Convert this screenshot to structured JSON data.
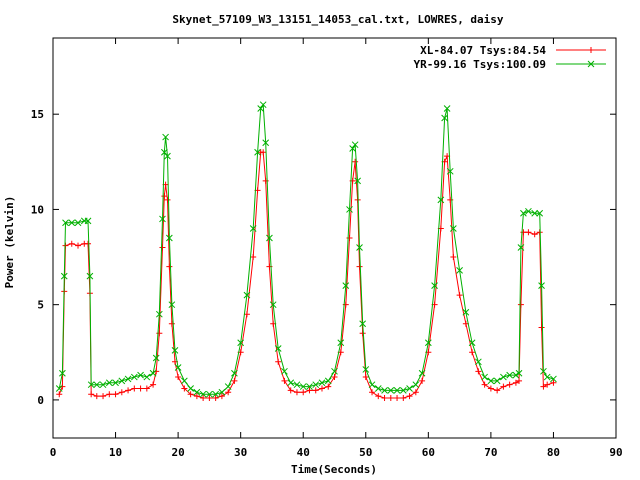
{
  "chart_data": {
    "type": "scatter",
    "title": "Skynet_57109_W3_13151_14053_cal.txt, LOWRES, daisy",
    "xlabel": "Time(Seconds)",
    "ylabel": "Power (kelvin)",
    "xlim": [
      0,
      90
    ],
    "ylim": [
      -2,
      19
    ],
    "xticks": [
      0,
      10,
      20,
      30,
      40,
      50,
      60,
      70,
      80,
      90
    ],
    "yticks": [
      0,
      5,
      10,
      15
    ],
    "grid": false,
    "legend_position": "top-right",
    "series": [
      {
        "name": "XL-84.07 Tsys:84.54",
        "color": "#ff0000",
        "marker": "plus",
        "points": [
          [
            1.0,
            0.3
          ],
          [
            1.5,
            0.7
          ],
          [
            1.8,
            5.7
          ],
          [
            2.0,
            8.1
          ],
          [
            3.0,
            8.2
          ],
          [
            4.0,
            8.1
          ],
          [
            5.0,
            8.2
          ],
          [
            5.6,
            8.2
          ],
          [
            5.9,
            5.6
          ],
          [
            6.1,
            0.3
          ],
          [
            7.0,
            0.2
          ],
          [
            8.0,
            0.2
          ],
          [
            9.0,
            0.3
          ],
          [
            10.0,
            0.3
          ],
          [
            11.0,
            0.4
          ],
          [
            12.0,
            0.5
          ],
          [
            13.0,
            0.6
          ],
          [
            14.0,
            0.6
          ],
          [
            15.0,
            0.6
          ],
          [
            16.0,
            0.8
          ],
          [
            16.5,
            1.5
          ],
          [
            17.0,
            3.5
          ],
          [
            17.5,
            8.0
          ],
          [
            17.8,
            10.7
          ],
          [
            18.0,
            11.3
          ],
          [
            18.3,
            10.5
          ],
          [
            18.6,
            7.0
          ],
          [
            19.0,
            4.0
          ],
          [
            19.5,
            2.0
          ],
          [
            20.0,
            1.2
          ],
          [
            21.0,
            0.6
          ],
          [
            22.0,
            0.3
          ],
          [
            23.0,
            0.2
          ],
          [
            24.0,
            0.1
          ],
          [
            25.0,
            0.1
          ],
          [
            26.0,
            0.1
          ],
          [
            27.0,
            0.2
          ],
          [
            28.0,
            0.4
          ],
          [
            29.0,
            1.0
          ],
          [
            30.0,
            2.5
          ],
          [
            31.0,
            4.5
          ],
          [
            32.0,
            7.5
          ],
          [
            32.7,
            11.0
          ],
          [
            33.2,
            13.0
          ],
          [
            33.6,
            13.0
          ],
          [
            34.0,
            11.5
          ],
          [
            34.6,
            7.0
          ],
          [
            35.2,
            4.0
          ],
          [
            36.0,
            2.0
          ],
          [
            37.0,
            1.0
          ],
          [
            38.0,
            0.5
          ],
          [
            39.0,
            0.4
          ],
          [
            40.0,
            0.4
          ],
          [
            41.0,
            0.5
          ],
          [
            42.0,
            0.5
          ],
          [
            43.0,
            0.6
          ],
          [
            44.0,
            0.7
          ],
          [
            45.0,
            1.2
          ],
          [
            46.0,
            2.5
          ],
          [
            46.8,
            5.0
          ],
          [
            47.4,
            8.5
          ],
          [
            47.9,
            11.5
          ],
          [
            48.3,
            12.5
          ],
          [
            48.7,
            10.5
          ],
          [
            49.0,
            7.0
          ],
          [
            49.5,
            3.5
          ],
          [
            50.0,
            1.2
          ],
          [
            51.0,
            0.4
          ],
          [
            52.0,
            0.2
          ],
          [
            53.0,
            0.1
          ],
          [
            54.0,
            0.1
          ],
          [
            55.0,
            0.1
          ],
          [
            56.0,
            0.1
          ],
          [
            57.0,
            0.2
          ],
          [
            58.0,
            0.4
          ],
          [
            59.0,
            1.0
          ],
          [
            60.0,
            2.5
          ],
          [
            61.0,
            5.0
          ],
          [
            62.0,
            9.0
          ],
          [
            62.6,
            12.5
          ],
          [
            63.0,
            12.8
          ],
          [
            63.5,
            10.5
          ],
          [
            64.0,
            7.5
          ],
          [
            65.0,
            5.5
          ],
          [
            66.0,
            4.0
          ],
          [
            67.0,
            2.5
          ],
          [
            68.0,
            1.5
          ],
          [
            69.0,
            0.8
          ],
          [
            70.0,
            0.6
          ],
          [
            71.0,
            0.5
          ],
          [
            72.0,
            0.7
          ],
          [
            73.0,
            0.8
          ],
          [
            74.0,
            0.9
          ],
          [
            74.5,
            1.0
          ],
          [
            74.8,
            5.0
          ],
          [
            75.2,
            8.8
          ],
          [
            76.0,
            8.8
          ],
          [
            77.0,
            8.7
          ],
          [
            77.8,
            8.8
          ],
          [
            78.1,
            3.8
          ],
          [
            78.4,
            0.7
          ],
          [
            79.0,
            0.8
          ],
          [
            80.0,
            0.9
          ]
        ]
      },
      {
        "name": "YR-99.16 Tsys:100.09",
        "color": "#00b000",
        "marker": "cross",
        "points": [
          [
            1.0,
            0.6
          ],
          [
            1.5,
            1.4
          ],
          [
            1.8,
            6.5
          ],
          [
            2.0,
            9.3
          ],
          [
            3.0,
            9.3
          ],
          [
            4.0,
            9.3
          ],
          [
            5.0,
            9.4
          ],
          [
            5.6,
            9.4
          ],
          [
            5.9,
            6.5
          ],
          [
            6.1,
            0.8
          ],
          [
            7.0,
            0.8
          ],
          [
            8.0,
            0.8
          ],
          [
            9.0,
            0.9
          ],
          [
            10.0,
            0.9
          ],
          [
            11.0,
            1.0
          ],
          [
            12.0,
            1.1
          ],
          [
            13.0,
            1.2
          ],
          [
            14.0,
            1.3
          ],
          [
            15.0,
            1.2
          ],
          [
            16.0,
            1.4
          ],
          [
            16.5,
            2.2
          ],
          [
            17.0,
            4.5
          ],
          [
            17.5,
            9.5
          ],
          [
            17.8,
            13.0
          ],
          [
            18.0,
            13.8
          ],
          [
            18.3,
            12.8
          ],
          [
            18.6,
            8.5
          ],
          [
            19.0,
            5.0
          ],
          [
            19.5,
            2.6
          ],
          [
            20.0,
            1.7
          ],
          [
            21.0,
            1.0
          ],
          [
            22.0,
            0.6
          ],
          [
            23.0,
            0.4
          ],
          [
            24.0,
            0.3
          ],
          [
            25.0,
            0.3
          ],
          [
            26.0,
            0.3
          ],
          [
            27.0,
            0.4
          ],
          [
            28.0,
            0.7
          ],
          [
            29.0,
            1.4
          ],
          [
            30.0,
            3.0
          ],
          [
            31.0,
            5.5
          ],
          [
            32.0,
            9.0
          ],
          [
            32.7,
            13.0
          ],
          [
            33.2,
            15.3
          ],
          [
            33.6,
            15.5
          ],
          [
            34.0,
            13.5
          ],
          [
            34.6,
            8.5
          ],
          [
            35.2,
            5.0
          ],
          [
            36.0,
            2.7
          ],
          [
            37.0,
            1.5
          ],
          [
            38.0,
            0.9
          ],
          [
            39.0,
            0.8
          ],
          [
            40.0,
            0.7
          ],
          [
            41.0,
            0.7
          ],
          [
            42.0,
            0.8
          ],
          [
            43.0,
            0.9
          ],
          [
            44.0,
            1.0
          ],
          [
            45.0,
            1.5
          ],
          [
            46.0,
            3.0
          ],
          [
            46.8,
            6.0
          ],
          [
            47.4,
            10.0
          ],
          [
            47.9,
            13.2
          ],
          [
            48.3,
            13.4
          ],
          [
            48.7,
            11.5
          ],
          [
            49.0,
            8.0
          ],
          [
            49.5,
            4.0
          ],
          [
            50.0,
            1.6
          ],
          [
            51.0,
            0.8
          ],
          [
            52.0,
            0.6
          ],
          [
            53.0,
            0.5
          ],
          [
            54.0,
            0.5
          ],
          [
            55.0,
            0.5
          ],
          [
            56.0,
            0.5
          ],
          [
            57.0,
            0.6
          ],
          [
            58.0,
            0.8
          ],
          [
            59.0,
            1.4
          ],
          [
            60.0,
            3.0
          ],
          [
            61.0,
            6.0
          ],
          [
            62.0,
            10.5
          ],
          [
            62.6,
            14.8
          ],
          [
            63.0,
            15.3
          ],
          [
            63.5,
            12.0
          ],
          [
            64.0,
            9.0
          ],
          [
            65.0,
            6.8
          ],
          [
            66.0,
            4.6
          ],
          [
            67.0,
            3.0
          ],
          [
            68.0,
            2.0
          ],
          [
            69.0,
            1.2
          ],
          [
            70.0,
            1.0
          ],
          [
            71.0,
            1.0
          ],
          [
            72.0,
            1.2
          ],
          [
            73.0,
            1.3
          ],
          [
            74.0,
            1.3
          ],
          [
            74.5,
            1.4
          ],
          [
            74.8,
            8.0
          ],
          [
            75.2,
            9.8
          ],
          [
            76.0,
            9.9
          ],
          [
            77.0,
            9.8
          ],
          [
            77.8,
            9.8
          ],
          [
            78.1,
            6.0
          ],
          [
            78.4,
            1.5
          ],
          [
            79.0,
            1.2
          ],
          [
            80.0,
            1.1
          ]
        ]
      }
    ]
  }
}
